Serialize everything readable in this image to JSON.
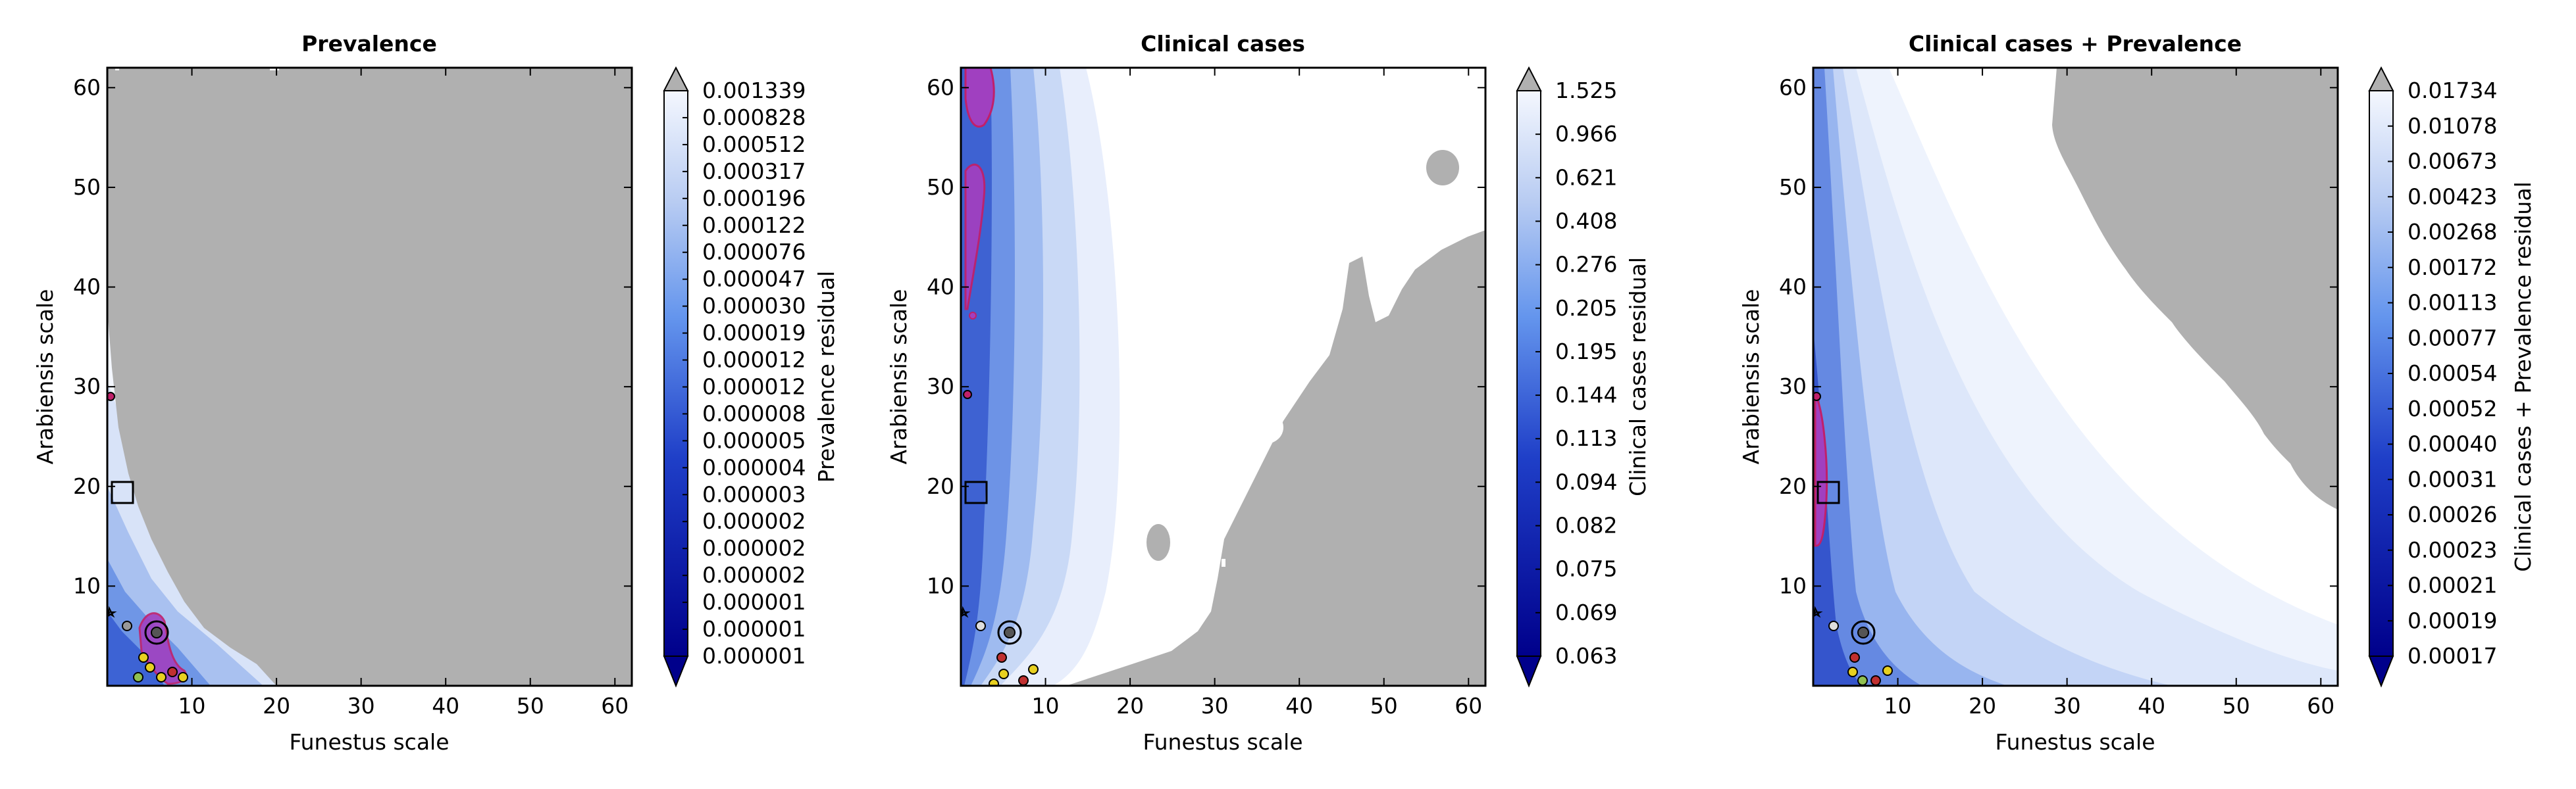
{
  "chart_data": [
    {
      "type": "heatmap",
      "title": "Prevalence",
      "xlabel": "Funestus scale",
      "ylabel": "Arabiensis scale",
      "colorbar_label": "Prevalence residual",
      "xlim": [
        0,
        62
      ],
      "ylim": [
        0,
        62
      ],
      "xticks": [
        10,
        20,
        30,
        40,
        50,
        60
      ],
      "yticks": [
        10,
        20,
        30,
        40,
        50,
        60
      ],
      "colorbar_ticks": [
        "0.001339",
        "0.000828",
        "0.000512",
        "0.000317",
        "0.000196",
        "0.000122",
        "0.000076",
        "0.000047",
        "0.000030",
        "0.000019",
        "0.000012",
        "0.000012",
        "0.000008",
        "0.000005",
        "0.000004",
        "0.000003",
        "0.000002",
        "0.000002",
        "0.000002",
        "0.000001",
        "0.000001",
        "0.000001"
      ],
      "boundary_x": [
        8,
        7,
        5,
        3,
        2,
        1,
        0.6,
        0.3,
        0,
        0
      ],
      "highlight_box": [
        1.5,
        20
      ]
    },
    {
      "type": "heatmap",
      "title": "Clinical cases",
      "xlabel": "Funestus scale",
      "ylabel": "Arabiensis scale",
      "colorbar_label": "Clinical cases residual",
      "xlim": [
        0,
        62
      ],
      "ylim": [
        0,
        62
      ],
      "xticks": [
        10,
        20,
        30,
        40,
        50,
        60
      ],
      "yticks": [
        10,
        20,
        30,
        40,
        50,
        60
      ],
      "colorbar_ticks": [
        "1.525",
        "0.966",
        "0.621",
        "0.408",
        "0.276",
        "0.205",
        "0.195",
        "0.144",
        "0.113",
        "0.094",
        "0.082",
        "0.075",
        "0.069",
        "0.063"
      ],
      "highlight_box": [
        1.5,
        20
      ]
    },
    {
      "type": "heatmap",
      "title": "Clinical cases + Prevalence",
      "xlabel": "Funestus scale",
      "ylabel": "Arabiensis scale",
      "colorbar_label": "Clinical cases + Prevalence residual",
      "xlim": [
        0,
        62
      ],
      "ylim": [
        0,
        62
      ],
      "xticks": [
        10,
        20,
        30,
        40,
        50,
        60
      ],
      "yticks": [
        10,
        20,
        30,
        40,
        50,
        60
      ],
      "colorbar_ticks": [
        "0.01734",
        "0.01078",
        "0.00673",
        "0.00423",
        "0.00268",
        "0.00172",
        "0.00113",
        "0.00077",
        "0.00054",
        "0.00052",
        "0.00040",
        "0.00031",
        "0.00026",
        "0.00023",
        "0.00021",
        "0.00019",
        "0.00017"
      ],
      "highlight_box": [
        1.5,
        20
      ]
    }
  ],
  "colors": {
    "low": "#00008b",
    "mid": "#6495ed",
    "high": "#f2f5fd",
    "over": "#b0b0b0",
    "contour": "#c0206a",
    "contour_fill": "#a040c0"
  }
}
